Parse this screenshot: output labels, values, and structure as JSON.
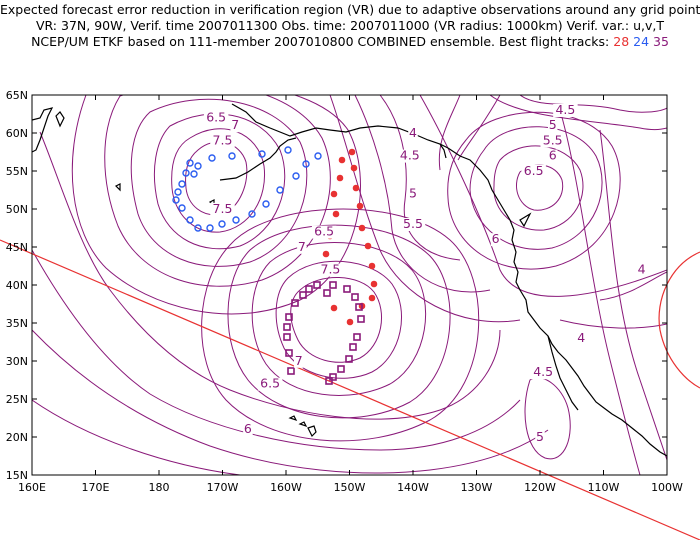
{
  "header": {
    "line1": "Expected forecast error reduction in verification region (VR) due to adaptive observations around any grid point.",
    "line2": "VR: 37N, 90W, Verif. time 2007011300  Obs. time: 2007011000 (VR radius: 1000km)   Verif. var.: u,v,T",
    "line3_prefix": "NCEP/UM ETKF based on 111-member 2007010800 COMBINED ensemble.  Best flight tracks:",
    "track1": "28",
    "track2": "24",
    "track3": "35"
  },
  "map": {
    "lon_ticks": [
      "160E",
      "170E",
      "180",
      "170W",
      "160W",
      "150W",
      "140W",
      "130W",
      "120W",
      "110W",
      "100W"
    ],
    "lat_ticks": [
      "65N",
      "60N",
      "55N",
      "50N",
      "45N",
      "40N",
      "35N",
      "30N",
      "25N",
      "20N",
      "15N"
    ],
    "contour_labels": [
      {
        "text": "6.5",
        "lon": -171,
        "lat": 61.5
      },
      {
        "text": "7",
        "lon": -168,
        "lat": 60.5
      },
      {
        "text": "7.5",
        "lon": -170,
        "lat": 58.5
      },
      {
        "text": "7.5",
        "lon": -170,
        "lat": 49.5
      },
      {
        "text": "7",
        "lon": -157.5,
        "lat": 44.5
      },
      {
        "text": "6.5",
        "lon": -154,
        "lat": 46.5
      },
      {
        "text": "7.5",
        "lon": -153,
        "lat": 41.5
      },
      {
        "text": "7",
        "lon": -158,
        "lat": 29.5
      },
      {
        "text": "6.5",
        "lon": -162.5,
        "lat": 26.5
      },
      {
        "text": "6",
        "lon": -166,
        "lat": 20.5
      },
      {
        "text": "4",
        "lon": -140,
        "lat": 59.5
      },
      {
        "text": "4.5",
        "lon": -140.5,
        "lat": 56.5
      },
      {
        "text": "5",
        "lon": -140,
        "lat": 51.5
      },
      {
        "text": "5.5",
        "lon": -140,
        "lat": 47.5
      },
      {
        "text": "6",
        "lon": -127,
        "lat": 45.5
      },
      {
        "text": "6.5",
        "lon": -121,
        "lat": 54.5
      },
      {
        "text": "6",
        "lon": -118,
        "lat": 56.5
      },
      {
        "text": "5.5",
        "lon": -118,
        "lat": 58.5
      },
      {
        "text": "5",
        "lon": -118,
        "lat": 60.5
      },
      {
        "text": "4.5",
        "lon": -116,
        "lat": 62.5
      },
      {
        "text": "4",
        "lon": -104,
        "lat": 41.5
      },
      {
        "text": "4",
        "lon": -113.5,
        "lat": 32.5
      },
      {
        "text": "4.5",
        "lon": -119.5,
        "lat": 28
      },
      {
        "text": "5",
        "lon": -120,
        "lat": 19.5
      }
    ],
    "verification_region": {
      "lat": 37,
      "lon": -90,
      "radius_km": 1000
    }
  },
  "colors": {
    "contour": "#8a1a7a",
    "track_red": "#e83232",
    "track_blue": "#2a5cf0",
    "track_purple": "#8a1a7a",
    "great_circle": "#e83232",
    "coast": "#000000"
  }
}
